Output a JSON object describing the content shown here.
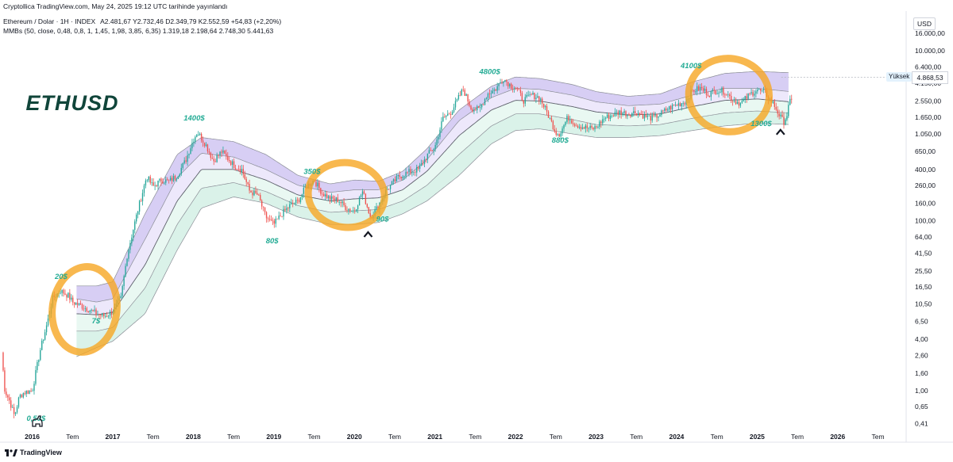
{
  "header": {
    "published": "Cryptollica TradingView.com, May 24, 2025 19:12 UTC tarihinde yayınlandı",
    "symbol": "Ethereum / Dolar · 1H · INDEX",
    "ohlc": "A2.481,67  Y2.732,46  D2.349,79  K2.552,59  +54,83 (+2,20%)",
    "indicator": "MMBs (50, close, 0,48, 0,8, 1, 1,45, 1,98, 3,85, 6,35)  1.319,18  2.198,64  2.748,30  5.441,63"
  },
  "axis": {
    "currency": "USD",
    "high_tag": "Yüksek",
    "high_value": "4.868,53"
  },
  "footer": {
    "brand": "TradingView"
  },
  "colors": {
    "upper_band": "#c9bdf0",
    "lower_band": "#cdeee2",
    "candle_up": "#26a69a",
    "candle_down": "#ef5350",
    "highlight": "#f6a623",
    "label": "#22ab94",
    "title": "#10453a"
  },
  "chart_data": {
    "type": "candlestick",
    "title": "ETHUSD",
    "y_scale": "log",
    "y_ticks": [
      "16.000,00",
      "10.000,00",
      "6.400,00",
      "4.150,00",
      "2.550,00",
      "1.650,00",
      "1.050,00",
      "650,00",
      "400,00",
      "260,00",
      "160,00",
      "100,00",
      "64,00",
      "41,50",
      "25,50",
      "16,50",
      "10,50",
      "6,50",
      "4,00",
      "2,60",
      "1,60",
      "1,00",
      "0,65",
      "0,41"
    ],
    "y_tick_values": [
      16000,
      10000,
      6400,
      4150,
      2550,
      1650,
      1050,
      650,
      400,
      260,
      160,
      100,
      64,
      41.5,
      25.5,
      16.5,
      10.5,
      6.5,
      4,
      2.6,
      1.6,
      1,
      0.65,
      0.41
    ],
    "x_ticks": [
      {
        "t": 2016.0,
        "label": "2016"
      },
      {
        "t": 2016.5,
        "label": "Tem"
      },
      {
        "t": 2017.0,
        "label": "2017"
      },
      {
        "t": 2017.5,
        "label": "Tem"
      },
      {
        "t": 2018.0,
        "label": "2018"
      },
      {
        "t": 2018.5,
        "label": "Tem"
      },
      {
        "t": 2019.0,
        "label": "2019"
      },
      {
        "t": 2019.5,
        "label": "Tem"
      },
      {
        "t": 2020.0,
        "label": "2020"
      },
      {
        "t": 2020.5,
        "label": "Tem"
      },
      {
        "t": 2021.0,
        "label": "2021"
      },
      {
        "t": 2021.5,
        "label": "Tem"
      },
      {
        "t": 2022.0,
        "label": "2022"
      },
      {
        "t": 2022.5,
        "label": "Tem"
      },
      {
        "t": 2023.0,
        "label": "2023"
      },
      {
        "t": 2023.5,
        "label": "Tem"
      },
      {
        "t": 2024.0,
        "label": "2024"
      },
      {
        "t": 2024.5,
        "label": "Tem"
      },
      {
        "t": 2025.0,
        "label": "2025"
      },
      {
        "t": 2025.5,
        "label": "Tem"
      },
      {
        "t": 2026.0,
        "label": "2026"
      },
      {
        "t": 2026.5,
        "label": "Tem"
      }
    ],
    "x_range": [
      2015.6,
      2026.85
    ],
    "price_path": [
      [
        2015.62,
        2.8
      ],
      [
        2015.66,
        1.0
      ],
      [
        2015.72,
        0.75
      ],
      [
        2015.78,
        0.5
      ],
      [
        2015.84,
        0.85
      ],
      [
        2015.9,
        0.95
      ],
      [
        2016.0,
        1.0
      ],
      [
        2016.1,
        3.0
      ],
      [
        2016.2,
        7.0
      ],
      [
        2016.25,
        12.0
      ],
      [
        2016.35,
        15.0
      ],
      [
        2016.45,
        13.0
      ],
      [
        2016.5,
        11.0
      ],
      [
        2016.6,
        10.0
      ],
      [
        2016.7,
        9.0
      ],
      [
        2016.8,
        8.0
      ],
      [
        2016.9,
        7.5
      ],
      [
        2017.0,
        8.5
      ],
      [
        2017.1,
        12.0
      ],
      [
        2017.18,
        40.0
      ],
      [
        2017.3,
        120.0
      ],
      [
        2017.42,
        330.0
      ],
      [
        2017.5,
        250.0
      ],
      [
        2017.6,
        300.0
      ],
      [
        2017.7,
        290.0
      ],
      [
        2017.8,
        340.0
      ],
      [
        2017.9,
        500.0
      ],
      [
        2018.0,
        900.0
      ],
      [
        2018.05,
        1100.0
      ],
      [
        2018.15,
        800.0
      ],
      [
        2018.25,
        500.0
      ],
      [
        2018.35,
        650.0
      ],
      [
        2018.5,
        450.0
      ],
      [
        2018.6,
        400.0
      ],
      [
        2018.7,
        220.0
      ],
      [
        2018.8,
        200.0
      ],
      [
        2018.9,
        110.0
      ],
      [
        2019.0,
        90.0
      ],
      [
        2019.1,
        120.0
      ],
      [
        2019.2,
        150.0
      ],
      [
        2019.3,
        170.0
      ],
      [
        2019.4,
        250.0
      ],
      [
        2019.5,
        300.0
      ],
      [
        2019.6,
        210.0
      ],
      [
        2019.7,
        180.0
      ],
      [
        2019.8,
        175.0
      ],
      [
        2019.9,
        140.0
      ],
      [
        2020.0,
        130.0
      ],
      [
        2020.1,
        220.0
      ],
      [
        2020.2,
        110.0
      ],
      [
        2020.28,
        140.0
      ],
      [
        2020.4,
        230.0
      ],
      [
        2020.55,
        330.0
      ],
      [
        2020.7,
        380.0
      ],
      [
        2020.8,
        400.0
      ],
      [
        2020.9,
        580.0
      ],
      [
        2021.0,
        740.0
      ],
      [
        2021.1,
        1600.0
      ],
      [
        2021.2,
        1900.0
      ],
      [
        2021.35,
        3500.0
      ],
      [
        2021.45,
        2100.0
      ],
      [
        2021.55,
        2000.0
      ],
      [
        2021.65,
        3100.0
      ],
      [
        2021.75,
        3500.0
      ],
      [
        2021.85,
        4700.0
      ],
      [
        2021.95,
        3800.0
      ],
      [
        2022.0,
        3700.0
      ],
      [
        2022.1,
        2600.0
      ],
      [
        2022.2,
        3000.0
      ],
      [
        2022.3,
        2800.0
      ],
      [
        2022.4,
        1800.0
      ],
      [
        2022.5,
        1100.0
      ],
      [
        2022.55,
        1050.0
      ],
      [
        2022.65,
        1650.0
      ],
      [
        2022.75,
        1350.0
      ],
      [
        2022.85,
        1250.0
      ],
      [
        2022.95,
        1200.0
      ],
      [
        2023.0,
        1250.0
      ],
      [
        2023.1,
        1600.0
      ],
      [
        2023.2,
        1750.0
      ],
      [
        2023.3,
        1900.0
      ],
      [
        2023.4,
        1800.0
      ],
      [
        2023.5,
        1900.0
      ],
      [
        2023.6,
        1700.0
      ],
      [
        2023.7,
        1600.0
      ],
      [
        2023.8,
        1800.0
      ],
      [
        2023.9,
        2100.0
      ],
      [
        2024.0,
        2300.0
      ],
      [
        2024.1,
        2500.0
      ],
      [
        2024.2,
        3400.0
      ],
      [
        2024.3,
        3600.0
      ],
      [
        2024.4,
        3100.0
      ],
      [
        2024.5,
        3400.0
      ],
      [
        2024.6,
        3300.0
      ],
      [
        2024.7,
        2600.0
      ],
      [
        2024.8,
        2400.0
      ],
      [
        2024.9,
        3000.0
      ],
      [
        2025.0,
        3500.0
      ],
      [
        2025.05,
        3300.0
      ],
      [
        2025.1,
        3200.0
      ],
      [
        2025.15,
        2700.0
      ],
      [
        2025.2,
        2400.0
      ],
      [
        2025.28,
        1700.0
      ],
      [
        2025.33,
        1450.0
      ],
      [
        2025.37,
        1750.0
      ],
      [
        2025.4,
        2450.0
      ],
      [
        2025.43,
        2550.0
      ]
    ],
    "bands": {
      "top_edge": [
        [
          2016.55,
          17
        ],
        [
          2016.8,
          17
        ],
        [
          2017.0,
          19
        ],
        [
          2017.4,
          120
        ],
        [
          2017.8,
          600
        ],
        [
          2018.1,
          950
        ],
        [
          2018.5,
          850
        ],
        [
          2018.9,
          600
        ],
        [
          2019.3,
          340
        ],
        [
          2019.7,
          270
        ],
        [
          2020.0,
          300
        ],
        [
          2020.3,
          290
        ],
        [
          2020.6,
          380
        ],
        [
          2020.9,
          700
        ],
        [
          2021.3,
          2000
        ],
        [
          2021.7,
          3800
        ],
        [
          2022.0,
          4900
        ],
        [
          2022.3,
          4700
        ],
        [
          2022.7,
          4000
        ],
        [
          2023.0,
          3300
        ],
        [
          2023.4,
          2900
        ],
        [
          2023.8,
          3100
        ],
        [
          2024.2,
          4300
        ],
        [
          2024.6,
          5400
        ],
        [
          2025.0,
          5700
        ],
        [
          2025.4,
          5500
        ]
      ],
      "upper_mid": [
        [
          2016.55,
          12
        ],
        [
          2016.8,
          11
        ],
        [
          2017.0,
          12
        ],
        [
          2017.4,
          60
        ],
        [
          2017.8,
          320
        ],
        [
          2018.1,
          620
        ],
        [
          2018.5,
          560
        ],
        [
          2018.9,
          400
        ],
        [
          2019.3,
          260
        ],
        [
          2019.7,
          215
        ],
        [
          2020.0,
          230
        ],
        [
          2020.3,
          230
        ],
        [
          2020.6,
          300
        ],
        [
          2020.9,
          520
        ],
        [
          2021.3,
          1500
        ],
        [
          2021.7,
          2800
        ],
        [
          2022.0,
          3600
        ],
        [
          2022.3,
          3500
        ],
        [
          2022.7,
          3000
        ],
        [
          2023.0,
          2500
        ],
        [
          2023.4,
          2250
        ],
        [
          2023.8,
          2350
        ],
        [
          2024.2,
          3000
        ],
        [
          2024.6,
          3600
        ],
        [
          2025.0,
          3600
        ],
        [
          2025.4,
          3300
        ]
      ],
      "mid": [
        [
          2016.55,
          8
        ],
        [
          2016.8,
          7.8
        ],
        [
          2017.0,
          8.3
        ],
        [
          2017.4,
          30
        ],
        [
          2017.8,
          170
        ],
        [
          2018.1,
          400
        ],
        [
          2018.5,
          400
        ],
        [
          2018.9,
          300
        ],
        [
          2019.3,
          200
        ],
        [
          2019.7,
          170
        ],
        [
          2020.0,
          180
        ],
        [
          2020.3,
          185
        ],
        [
          2020.6,
          230
        ],
        [
          2020.9,
          380
        ],
        [
          2021.3,
          1000
        ],
        [
          2021.7,
          2000
        ],
        [
          2022.0,
          2600
        ],
        [
          2022.3,
          2550
        ],
        [
          2022.7,
          2200
        ],
        [
          2023.0,
          1900
        ],
        [
          2023.4,
          1750
        ],
        [
          2023.8,
          1800
        ],
        [
          2024.2,
          2200
        ],
        [
          2024.6,
          2600
        ],
        [
          2025.0,
          2700
        ],
        [
          2025.4,
          2500
        ]
      ],
      "lower_mid": [
        [
          2016.55,
          5
        ],
        [
          2016.8,
          5
        ],
        [
          2017.0,
          5.5
        ],
        [
          2017.4,
          16
        ],
        [
          2017.8,
          90
        ],
        [
          2018.1,
          240
        ],
        [
          2018.5,
          280
        ],
        [
          2018.9,
          220
        ],
        [
          2019.3,
          150
        ],
        [
          2019.7,
          125
        ],
        [
          2020.0,
          130
        ],
        [
          2020.3,
          135
        ],
        [
          2020.6,
          170
        ],
        [
          2020.9,
          260
        ],
        [
          2021.3,
          600
        ],
        [
          2021.7,
          1300
        ],
        [
          2022.0,
          1800
        ],
        [
          2022.3,
          1800
        ],
        [
          2022.7,
          1550
        ],
        [
          2023.0,
          1350
        ],
        [
          2023.4,
          1300
        ],
        [
          2023.8,
          1350
        ],
        [
          2024.2,
          1600
        ],
        [
          2024.6,
          1850
        ],
        [
          2025.0,
          1950
        ],
        [
          2025.4,
          1850
        ]
      ],
      "bottom_edge": [
        [
          2016.55,
          2.5
        ],
        [
          2016.8,
          3.2
        ],
        [
          2017.0,
          3.8
        ],
        [
          2017.4,
          8
        ],
        [
          2017.8,
          45
        ],
        [
          2018.1,
          140
        ],
        [
          2018.5,
          190
        ],
        [
          2018.9,
          160
        ],
        [
          2019.3,
          110
        ],
        [
          2019.7,
          90
        ],
        [
          2020.0,
          90
        ],
        [
          2020.3,
          95
        ],
        [
          2020.6,
          120
        ],
        [
          2020.9,
          170
        ],
        [
          2021.3,
          340
        ],
        [
          2021.7,
          800
        ],
        [
          2022.0,
          1150
        ],
        [
          2022.3,
          1200
        ],
        [
          2022.7,
          1050
        ],
        [
          2023.0,
          950
        ],
        [
          2023.4,
          950
        ],
        [
          2023.8,
          1000
        ],
        [
          2024.2,
          1150
        ],
        [
          2024.6,
          1300
        ],
        [
          2025.0,
          1400
        ],
        [
          2025.4,
          1350
        ]
      ]
    },
    "annotations": [
      {
        "text": "ETHUSD",
        "t": 2015.92,
        "v": 2000,
        "kind": "title"
      },
      {
        "text": "0,50$",
        "t": 2015.93,
        "v": 0.44,
        "kind": "price"
      },
      {
        "text": "20$",
        "t": 2016.28,
        "v": 20.5,
        "kind": "price"
      },
      {
        "text": "7$",
        "t": 2016.74,
        "v": 6.2,
        "kind": "price"
      },
      {
        "text": "1400$",
        "t": 2017.88,
        "v": 1500,
        "kind": "price"
      },
      {
        "text": "80$",
        "t": 2018.9,
        "v": 54,
        "kind": "price"
      },
      {
        "text": "350$",
        "t": 2019.37,
        "v": 355,
        "kind": "price"
      },
      {
        "text": "90$",
        "t": 2020.27,
        "v": 98,
        "kind": "price"
      },
      {
        "text": "4800$",
        "t": 2021.55,
        "v": 5300,
        "kind": "price"
      },
      {
        "text": "880$",
        "t": 2022.45,
        "v": 830,
        "kind": "price"
      },
      {
        "text": "4100$",
        "t": 2024.05,
        "v": 6200,
        "kind": "price"
      },
      {
        "text": "1300$",
        "t": 2024.92,
        "v": 1300,
        "kind": "price"
      }
    ],
    "markers": [
      {
        "t": 2020.17,
        "v": 70,
        "symbol": "caret"
      },
      {
        "t": 2025.29,
        "v": 1120,
        "symbol": "caret"
      }
    ],
    "highlights": [
      {
        "t": 2016.65,
        "v": 9,
        "rt": 0.8,
        "rv": 3.2
      },
      {
        "t": 2019.9,
        "v": 200,
        "rt": 0.95,
        "rv": 2.4
      },
      {
        "t": 2024.65,
        "v": 3000,
        "rt": 1.0,
        "rv": 2.7
      }
    ]
  }
}
